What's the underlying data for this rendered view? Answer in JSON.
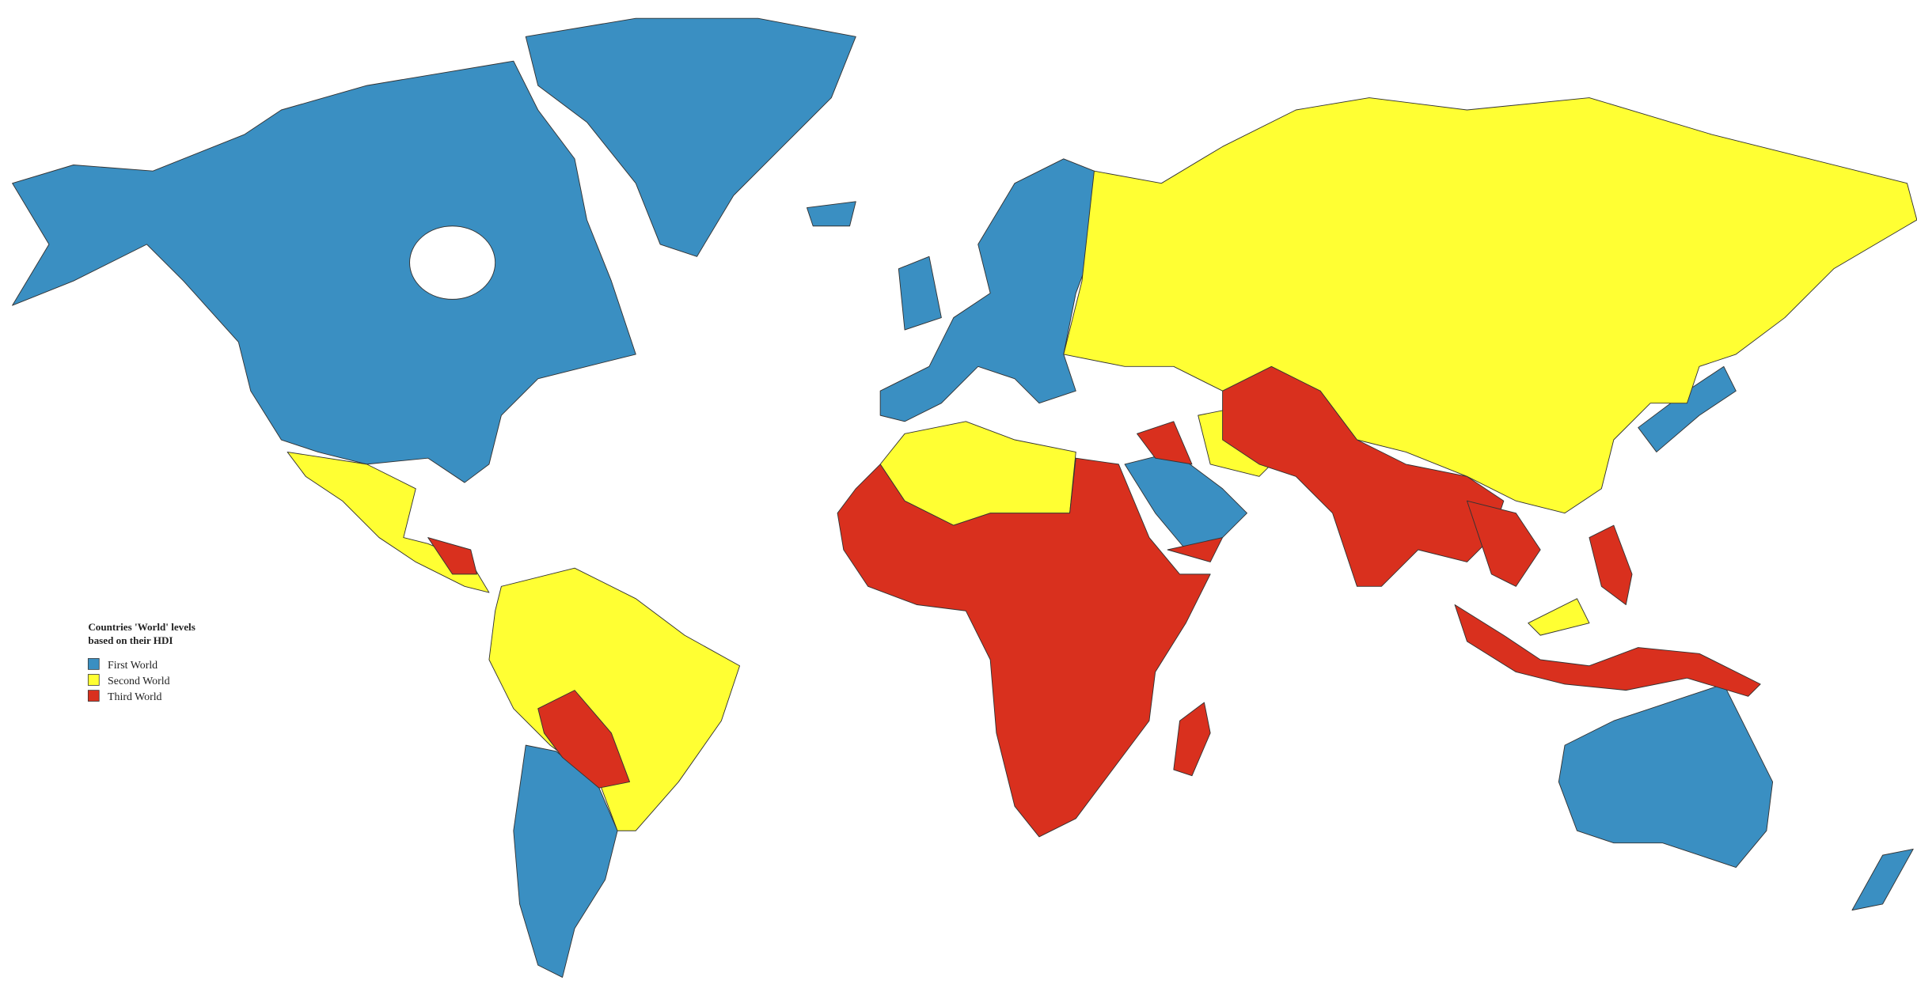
{
  "legend": {
    "title": [
      "Countries 'World' levels",
      "based on their HDI"
    ],
    "items": [
      {
        "label": "First World",
        "color": "#3a8fc2"
      },
      {
        "label": "Second World",
        "color": "#ffff33"
      },
      {
        "label": "Third World",
        "color": "#d9301e"
      }
    ]
  }
}
